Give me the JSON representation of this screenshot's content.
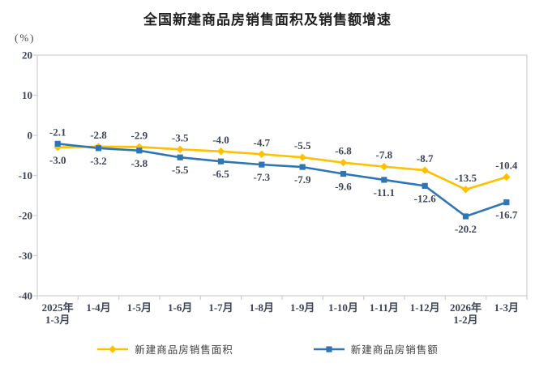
{
  "chart": {
    "title": "全国新建商品房销售面积及销售额增速",
    "unit_label": "(%)"
  },
  "chart_data": {
    "type": "line",
    "title": "全国新建商品房销售面积及销售额增速",
    "ylabel": "(%)",
    "xlabel": "",
    "categories": [
      "2025年\n1-3月",
      "1-4月",
      "1-5月",
      "1-6月",
      "1-7月",
      "1-8月",
      "1-9月",
      "1-10月",
      "1-11月",
      "1-12月",
      "2026年\n1-2月",
      "1-3月"
    ],
    "series": [
      {
        "name": "新建商品房销售面积",
        "color": "#FFC000",
        "marker": "diamond",
        "values": [
          -3.0,
          -2.8,
          -2.9,
          -3.5,
          -4.0,
          -4.7,
          -5.5,
          -6.8,
          -7.8,
          -8.7,
          -13.5,
          -10.4
        ]
      },
      {
        "name": "新建商品房销售额",
        "color": "#2E75B6",
        "marker": "square",
        "values": [
          -2.1,
          -3.2,
          -3.8,
          -5.5,
          -6.5,
          -7.3,
          -7.9,
          -9.6,
          -11.1,
          -12.6,
          -20.2,
          -16.7
        ]
      }
    ],
    "ylim": [
      -40,
      20
    ],
    "y_ticks": [
      20,
      10,
      0,
      -10,
      -20,
      -30,
      -40
    ],
    "grid": false,
    "data_labels": true,
    "legend_position": "bottom",
    "axis_color": "#d2d2d2",
    "label_color": "#3d4558"
  }
}
